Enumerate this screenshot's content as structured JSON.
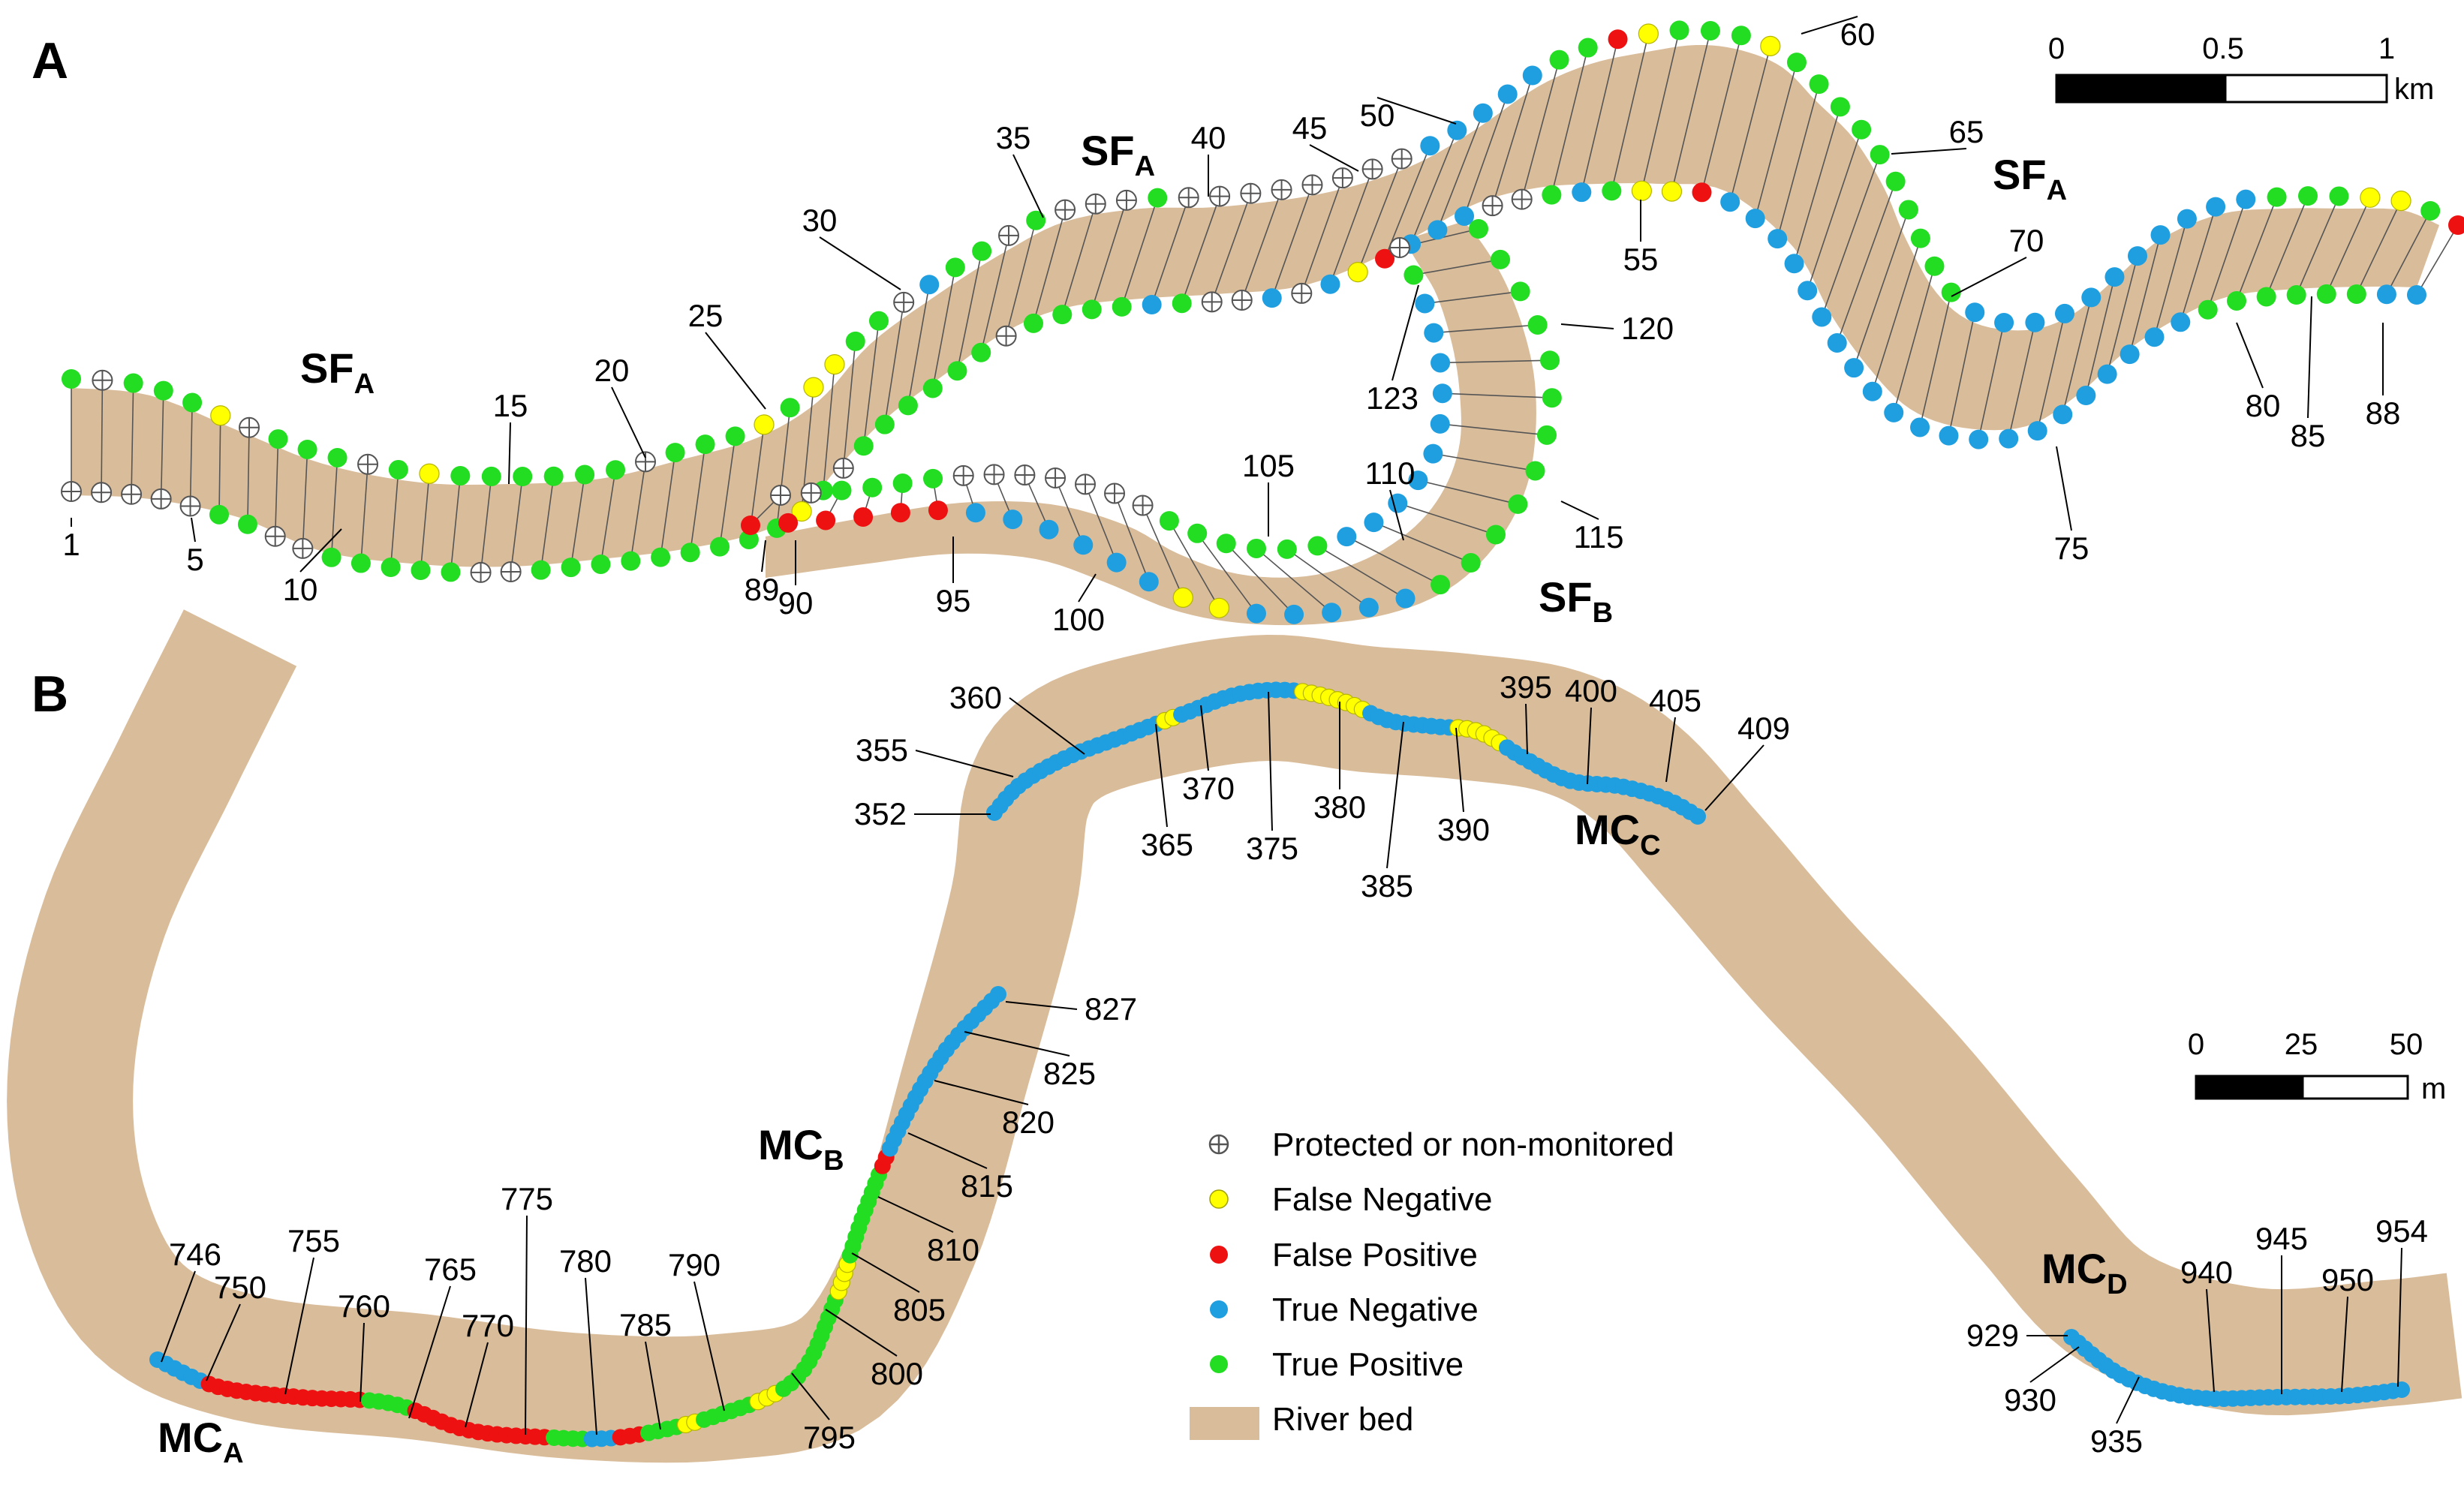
{
  "colors": {
    "river_bed": "#d9bc9a",
    "false_negative": "#ffff00",
    "false_positive": "#ee1111",
    "true_negative": "#1f9ee0",
    "true_positive": "#22dd22",
    "protected": "#ffffff",
    "transect_line": "#555555"
  },
  "panel_a": {
    "letter": "A",
    "reaches": [
      {
        "main": "SF",
        "sub": "A"
      },
      {
        "main": "SF",
        "sub": "A"
      },
      {
        "main": "SF",
        "sub": "A"
      },
      {
        "main": "SF",
        "sub": "B"
      }
    ],
    "transect_labels": [
      "1",
      "5",
      "10",
      "15",
      "20",
      "25",
      "30",
      "35",
      "40",
      "45",
      "50",
      "55",
      "60",
      "65",
      "70",
      "75",
      "80",
      "85",
      "88",
      "89",
      "90",
      "95",
      "100",
      "105",
      "110",
      "115",
      "120",
      "123"
    ],
    "scale": {
      "ticks": [
        "0",
        "0.5",
        "1"
      ],
      "unit": "km"
    }
  },
  "panel_b": {
    "letter": "B",
    "reaches": [
      {
        "main": "MC",
        "sub": "A"
      },
      {
        "main": "MC",
        "sub": "B"
      },
      {
        "main": "MC",
        "sub": "C"
      },
      {
        "main": "MC",
        "sub": "D"
      }
    ],
    "transect_labels": [
      "746",
      "750",
      "755",
      "760",
      "765",
      "770",
      "775",
      "780",
      "785",
      "790",
      "795",
      "800",
      "805",
      "810",
      "815",
      "820",
      "825",
      "827",
      "352",
      "355",
      "360",
      "365",
      "370",
      "375",
      "380",
      "385",
      "390",
      "395",
      "400",
      "405",
      "409",
      "929",
      "930",
      "935",
      "940",
      "945",
      "950",
      "954"
    ],
    "scale": {
      "ticks": [
        "0",
        "25",
        "50"
      ],
      "unit": "m"
    }
  },
  "legend": {
    "items": [
      {
        "label": "Protected or non-monitored",
        "icon": "circle-plus-icon"
      },
      {
        "label": "False Negative",
        "color": "#ffff00"
      },
      {
        "label": "False Positive",
        "color": "#ee1111"
      },
      {
        "label": "True Negative",
        "color": "#1f9ee0"
      },
      {
        "label": "True Positive",
        "color": "#22dd22"
      },
      {
        "label": "River bed",
        "color": "#d9bc9a"
      }
    ]
  }
}
